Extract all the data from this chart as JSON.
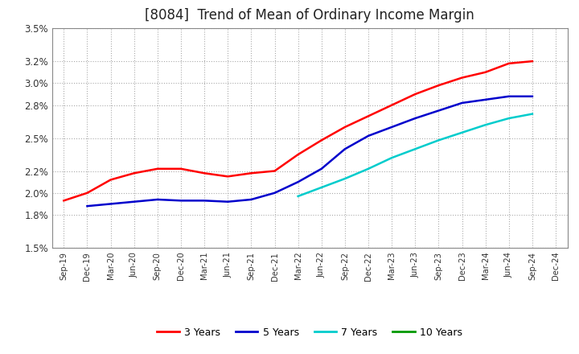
{
  "title": "[8084]  Trend of Mean of Ordinary Income Margin",
  "title_fontsize": 12,
  "background_color": "#ffffff",
  "plot_bg_color": "#ffffff",
  "grid_color": "#aaaaaa",
  "ylim": [
    0.015,
    0.035
  ],
  "yticks_vals": [
    0.015,
    0.018,
    0.02,
    0.022,
    0.025,
    0.028,
    0.03,
    0.032,
    0.035
  ],
  "ytick_labels": [
    "1.5%",
    "1.8%",
    "2.0%",
    "2.2%",
    "2.5%",
    "2.8%",
    "3.0%",
    "3.2%",
    "3.5%"
  ],
  "x_labels": [
    "Sep-19",
    "Dec-19",
    "Mar-20",
    "Jun-20",
    "Sep-20",
    "Dec-20",
    "Mar-21",
    "Jun-21",
    "Sep-21",
    "Dec-21",
    "Mar-22",
    "Jun-22",
    "Sep-22",
    "Dec-22",
    "Mar-23",
    "Jun-23",
    "Sep-23",
    "Dec-23",
    "Mar-24",
    "Jun-24",
    "Sep-24",
    "Dec-24"
  ],
  "series_order": [
    "3 Years",
    "5 Years",
    "7 Years",
    "10 Years"
  ],
  "series": {
    "3 Years": {
      "color": "#ff0000",
      "values": [
        0.0193,
        0.02,
        0.0212,
        0.0218,
        0.0222,
        0.0222,
        0.0218,
        0.0215,
        0.0218,
        0.022,
        0.0235,
        0.0248,
        0.026,
        0.027,
        0.028,
        0.029,
        0.0298,
        0.0305,
        0.031,
        0.0318,
        0.032,
        null
      ]
    },
    "5 Years": {
      "color": "#0000cc",
      "values": [
        null,
        0.0188,
        0.019,
        0.0192,
        0.0194,
        0.0193,
        0.0193,
        0.0192,
        0.0194,
        0.02,
        0.021,
        0.0222,
        0.024,
        0.0252,
        0.026,
        0.0268,
        0.0275,
        0.0282,
        0.0285,
        0.0288,
        0.0288,
        null
      ]
    },
    "7 Years": {
      "color": "#00cccc",
      "values": [
        null,
        null,
        null,
        null,
        null,
        null,
        null,
        null,
        null,
        null,
        0.0197,
        0.0205,
        0.0213,
        0.0222,
        0.0232,
        0.024,
        0.0248,
        0.0255,
        0.0262,
        0.0268,
        0.0272,
        null
      ]
    },
    "10 Years": {
      "color": "#009900",
      "values": [
        null,
        null,
        null,
        null,
        null,
        null,
        null,
        null,
        null,
        null,
        null,
        null,
        null,
        null,
        null,
        null,
        null,
        null,
        null,
        null,
        null,
        null
      ]
    }
  },
  "legend_labels": [
    "3 Years",
    "5 Years",
    "7 Years",
    "10 Years"
  ],
  "legend_colors": [
    "#ff0000",
    "#0000cc",
    "#00cccc",
    "#009900"
  ]
}
